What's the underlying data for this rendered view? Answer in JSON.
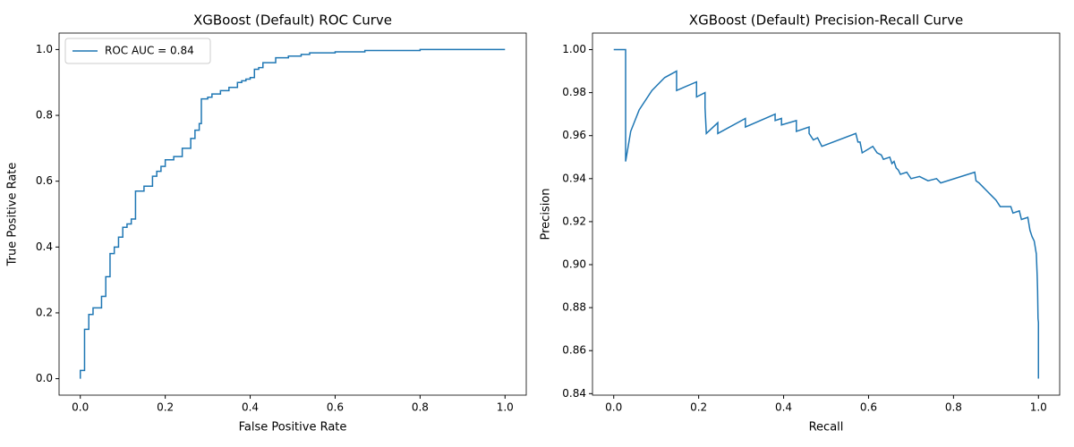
{
  "chart_data": [
    {
      "type": "line",
      "title": "XGBoost (Default) ROC Curve",
      "xlabel": "False Positive Rate",
      "ylabel": "True Positive Rate",
      "x": [
        0,
        0,
        0.01,
        0.01,
        0.02,
        0.02,
        0.03,
        0.03,
        0.05,
        0.05,
        0.06,
        0.06,
        0.07,
        0.07,
        0.08,
        0.08,
        0.09,
        0.09,
        0.1,
        0.1,
        0.11,
        0.11,
        0.12,
        0.12,
        0.13,
        0.13,
        0.15,
        0.15,
        0.17,
        0.17,
        0.18,
        0.18,
        0.19,
        0.19,
        0.2,
        0.2,
        0.22,
        0.22,
        0.24,
        0.24,
        0.26,
        0.26,
        0.27,
        0.27,
        0.28,
        0.28,
        0.285,
        0.285,
        0.3,
        0.3,
        0.31,
        0.31,
        0.33,
        0.33,
        0.35,
        0.35,
        0.37,
        0.37,
        0.38,
        0.38,
        0.39,
        0.39,
        0.4,
        0.4,
        0.41,
        0.41,
        0.42,
        0.42,
        0.43,
        0.43,
        0.46,
        0.46,
        0.49,
        0.49,
        0.52,
        0.52,
        0.54,
        0.54,
        0.6,
        0.6,
        0.67,
        0.67,
        0.8,
        0.8,
        1.0
      ],
      "series": [
        {
          "name": "ROC AUC = 0.84",
          "color": "#1f77b4",
          "values": [
            0,
            0.025,
            0.025,
            0.15,
            0.15,
            0.195,
            0.195,
            0.215,
            0.215,
            0.25,
            0.25,
            0.31,
            0.31,
            0.38,
            0.38,
            0.4,
            0.4,
            0.43,
            0.43,
            0.46,
            0.46,
            0.47,
            0.47,
            0.485,
            0.485,
            0.57,
            0.57,
            0.585,
            0.585,
            0.615,
            0.615,
            0.63,
            0.63,
            0.645,
            0.645,
            0.665,
            0.665,
            0.675,
            0.675,
            0.7,
            0.7,
            0.73,
            0.73,
            0.755,
            0.755,
            0.775,
            0.775,
            0.85,
            0.85,
            0.855,
            0.855,
            0.865,
            0.865,
            0.875,
            0.875,
            0.885,
            0.885,
            0.9,
            0.9,
            0.905,
            0.905,
            0.91,
            0.91,
            0.915,
            0.915,
            0.94,
            0.94,
            0.945,
            0.945,
            0.96,
            0.96,
            0.975,
            0.975,
            0.98,
            0.98,
            0.985,
            0.985,
            0.99,
            0.99,
            0.993,
            0.993,
            0.997,
            0.997,
            1.0,
            1.0
          ]
        }
      ],
      "legend": "upper left",
      "xlim": [
        -0.05,
        1.05
      ],
      "ylim": [
        -0.05,
        1.05
      ],
      "xticks": [
        {
          "value": 0,
          "label": "0.0"
        },
        0.2,
        0.4,
        0.6,
        0.8,
        {
          "value": 1,
          "label": "1.0"
        }
      ],
      "yticks": [
        {
          "value": 0,
          "label": "0.0"
        },
        0.2,
        0.4,
        0.6,
        0.8,
        {
          "value": 1,
          "label": "1.0"
        }
      ]
    },
    {
      "type": "line",
      "title": "XGBoost (Default) Precision-Recall Curve",
      "xlabel": "Recall",
      "ylabel": "Precision",
      "x": [
        0,
        0.028,
        0.028,
        0.04,
        0.06,
        0.09,
        0.12,
        0.148,
        0.148,
        0.195,
        0.195,
        0.215,
        0.215,
        0.218,
        0.245,
        0.245,
        0.31,
        0.31,
        0.38,
        0.38,
        0.395,
        0.395,
        0.43,
        0.43,
        0.46,
        0.46,
        0.47,
        0.48,
        0.49,
        0.57,
        0.575,
        0.58,
        0.585,
        0.61,
        0.62,
        0.63,
        0.635,
        0.65,
        0.655,
        0.66,
        0.665,
        0.67,
        0.675,
        0.69,
        0.7,
        0.72,
        0.74,
        0.76,
        0.77,
        0.85,
        0.853,
        0.86,
        0.87,
        0.88,
        0.89,
        0.9,
        0.91,
        0.935,
        0.94,
        0.955,
        0.96,
        0.975,
        0.98,
        0.985,
        0.99,
        0.995,
        0.997,
        0.998,
        0.999,
        1.0,
        1.0
      ],
      "series": [
        {
          "color": "#1f77b4",
          "values": [
            1,
            1,
            0.948,
            0.962,
            0.972,
            0.981,
            0.987,
            0.99,
            0.981,
            0.985,
            0.978,
            0.98,
            0.973,
            0.961,
            0.966,
            0.961,
            0.968,
            0.964,
            0.97,
            0.967,
            0.968,
            0.965,
            0.967,
            0.962,
            0.964,
            0.961,
            0.958,
            0.959,
            0.955,
            0.961,
            0.957,
            0.957,
            0.952,
            0.955,
            0.952,
            0.951,
            0.949,
            0.95,
            0.947,
            0.948,
            0.945,
            0.944,
            0.942,
            0.943,
            0.94,
            0.941,
            0.939,
            0.94,
            0.938,
            0.943,
            0.939,
            0.938,
            0.936,
            0.934,
            0.932,
            0.93,
            0.927,
            0.927,
            0.924,
            0.925,
            0.921,
            0.922,
            0.916,
            0.913,
            0.911,
            0.905,
            0.895,
            0.888,
            0.875,
            0.873,
            0.847
          ]
        }
      ],
      "xlim": [
        -0.05,
        1.05
      ],
      "ylim": [
        0.8393,
        1.0077
      ],
      "xticks": [
        {
          "value": 0,
          "label": "0.0"
        },
        0.2,
        0.4,
        0.6,
        0.8,
        {
          "value": 1,
          "label": "1.0"
        }
      ],
      "yticks": [
        0.84,
        0.86,
        0.88,
        {
          "value": 0.9,
          "label": "0.90"
        },
        0.92,
        0.94,
        0.96,
        0.98,
        {
          "value": 1,
          "label": "1.00"
        }
      ]
    }
  ]
}
